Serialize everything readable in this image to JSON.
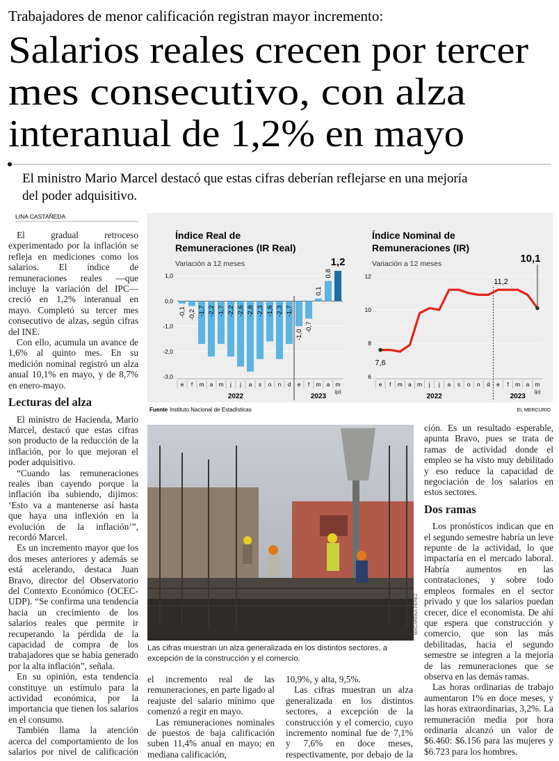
{
  "header": {
    "kicker": "Trabajadores de menor calificación registran mayor incremento:",
    "title": [
      "Salarios reales crecen por tercer",
      "mes consecutivo, con alza",
      "interanual de 1,2% en mayo"
    ],
    "deck": [
      "El ministro Mario Marcel destacó que estas cifras deberían reflejarse en una mejoría",
      "del poder adquisitivo."
    ],
    "byline": "LINA CASTAÑEDA"
  },
  "chart_data": [
    {
      "type": "bar",
      "title": [
        "Índice Real de",
        "Remuneraciones (IR Real)"
      ],
      "subtitle": "Variación a 12 meses",
      "categories": [
        "e",
        "f",
        "m",
        "a",
        "m",
        "j",
        "j",
        "a",
        "s",
        "o",
        "n",
        "d",
        "e",
        "f",
        "m",
        "a",
        "m"
      ],
      "x_groups": [
        "2022",
        "2023"
      ],
      "x_note": "(p)",
      "values": [
        -0.1,
        -0.2,
        -1.7,
        -2.2,
        -1.7,
        -2.2,
        -2.6,
        -2.8,
        -2.3,
        -1.6,
        -2.3,
        -1.7,
        -1.0,
        -0.7,
        0.1,
        0.8,
        1.2
      ],
      "value_labels": [
        "-0,1",
        "-0,2",
        "-1,7",
        "-2,2",
        "-1,7",
        "-2,2",
        "-2,6",
        "-2,8",
        "-2,3",
        "-1,6",
        "-2,3",
        "-1,7",
        "-1,0",
        "-0,7",
        "0,1",
        "0,8",
        "1,2"
      ],
      "color": "#5db4e2",
      "highlight_color": "#1b6ea6",
      "ylim": [
        -3,
        1.2
      ],
      "yticks": [
        {
          "value": 1,
          "label": "1,0"
        },
        {
          "value": 0,
          "label": "0,0"
        },
        {
          "value": -1,
          "label": "-1,0"
        },
        {
          "value": -2,
          "label": "-2,0"
        },
        {
          "value": -3,
          "label": "-3,0"
        }
      ],
      "grid": true
    },
    {
      "type": "line",
      "title": [
        "Índice Nominal de",
        "Remuneraciones (IR)"
      ],
      "subtitle": "Variación a 12 meses",
      "categories": [
        "e",
        "f",
        "m",
        "a",
        "m",
        "j",
        "j",
        "a",
        "s",
        "o",
        "n",
        "d",
        "e",
        "f",
        "m",
        "a",
        "m"
      ],
      "x_groups": [
        "2022",
        "2023"
      ],
      "x_note": "(p)",
      "values": [
        7.6,
        7.6,
        7.5,
        7.9,
        9.8,
        10.1,
        10.0,
        11.2,
        11.2,
        11.0,
        10.9,
        10.9,
        11.2,
        11.2,
        11.2,
        10.9,
        10.1
      ],
      "value_labels": [
        "7,6",
        null,
        null,
        null,
        null,
        null,
        null,
        null,
        null,
        null,
        null,
        null,
        "11,2",
        null,
        null,
        null,
        "10,1"
      ],
      "color": "#e3231b",
      "ylim": [
        6,
        12.5
      ],
      "yticks": [
        6,
        8,
        10,
        12
      ],
      "grid": true
    }
  ],
  "source": {
    "label": "Fuente",
    "text": "Instituto Nacional de Estadísticas",
    "brand": "EL MERCURIO"
  },
  "photo": {
    "caption": "Las cifras muestran un alza generalizada en los distintos sectores, a excepción de la construcción y el comercio.",
    "credit": "MACARENA PÉREZ"
  },
  "article": {
    "column_1": {
      "paragraphs": [
        "El gradual retroceso experimentado por la inflación se refleja en mediciones como los salarios. El índice de remuneraciones reales —que incluye la variación del IPC— creció en 1,2% interanual en mayo. Completó su tercer mes consecutivo de alzas, según cifras del INE.",
        "Con ello, acumula un avance de 1,6% al quinto mes. En su medición nominal registró un alza anual 10,1% en mayo, y de 8,7% en enero-mayo."
      ],
      "subhead": "Lecturas del alza",
      "paragraphs_after": [
        "El ministro de Hacienda, Mario Marcel, destacó que estas cifras son producto de la reducción de la inflación, por lo que mejoran el poder adquisitivo.",
        "“Cuando las remuneraciones reales iban cayendo porque la inflación iba subiendo, dijimos: ‘Esto va a mantenerse así hasta que haya una inflexión en la evolución de la inflación’”, recordó Marcel.",
        "Es un incremento mayor que los dos meses anteriores y además se está acelerando, destaca Juan Bravo, director del Observatorio del Contexto Económico (OCEC-UDP). “Se confirma una tendencia hacia un crecimiento de los salarios reales que permite ir recuperando la pérdida de la capacidad de compra de los trabajadores que se había generado por la alta inflación”, señala.",
        "En su opinión, esta tendencia constituye un estímulo para la actividad económica, por la importancia que tienen los salarios en el consumo.",
        "También llama la atención acerca del comportamiento de los salarios por nivel de calificación de la mano de obra. A menor es la calificación, mayor es"
      ]
    },
    "column_2": {
      "paragraphs": [
        "el incremento real de las remuneraciones, en parte ligado al reajuste del salario mínimo que comenzó a regir en mayo.",
        "Las remuneraciones nominales de puestos de baja calificación suben 11,4% anual en mayo; en mediana calificación,"
      ]
    },
    "column_3": {
      "paragraphs": [
        "10,9%, y alta, 9,5%.",
        "Las cifras muestran un alza generalizada en los distintos sectores, a excepción de la construcción y el comercio, cuyo incremento nominal fue de 7,1% y 7,6% en doce meses, respectivamente, por debajo de la infla-"
      ]
    },
    "column_4": {
      "paragraphs": [
        "ción. Es un resultado esperable, apunta Bravo, pues se trata de ramas de actividad donde el empleo se ha visto muy debilitado y eso reduce la capacidad de negociación de los salarios en estos sectores."
      ],
      "subhead": "Dos ramas",
      "paragraphs_after": [
        "Los pronósticos indican que en el segundo semestre habría un leve repunte de la actividad, lo que impactaría en el mercado laboral. Habría aumentos en las contrataciones, y sobre todo empleos formales en el sector privado y que los salarios puedan crecer, dice el economista. De ahí que espera que construcción y comercio, que son las más debilitadas, hacia el segundo semestre se integren a la mejoría de las remuneraciones que se observa en las demás ramas.",
        "Las horas ordinarias de trabajo aumentaron 1% en doce meses, y las horas extraordinarias, 3,2%. La remuneración media por hora ordinaria alcanzó un valor de $6.460: $6.156 para las mujeres y $6.723 para los hombres."
      ]
    }
  }
}
